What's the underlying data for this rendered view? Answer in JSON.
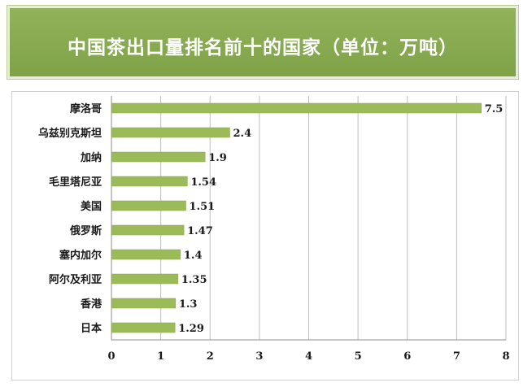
{
  "chart_data": {
    "type": "bar",
    "orientation": "horizontal",
    "title": "中国茶出口量排名前十的国家（单位：万吨）",
    "categories": [
      "摩洛哥",
      "乌兹别克斯坦",
      "加纳",
      "毛里塔尼亚",
      "美国",
      "俄罗斯",
      "塞内加尔",
      "阿尔及利亚",
      "香港",
      "日本"
    ],
    "values": [
      7.5,
      2.4,
      1.9,
      1.54,
      1.51,
      1.47,
      1.4,
      1.35,
      1.3,
      1.29
    ],
    "value_labels": [
      "7.5",
      "2.4",
      "1.9",
      "1.54",
      "1.51",
      "1.47",
      "1.4",
      "1.35",
      "1.3",
      "1.29"
    ],
    "xlim": [
      0,
      8
    ],
    "x_ticks": [
      "0",
      "1",
      "2",
      "3",
      "4",
      "5",
      "6",
      "7",
      "8"
    ],
    "grid": "vertical",
    "bar_color": "#9bbb59",
    "banner_color": "#86a84f"
  }
}
